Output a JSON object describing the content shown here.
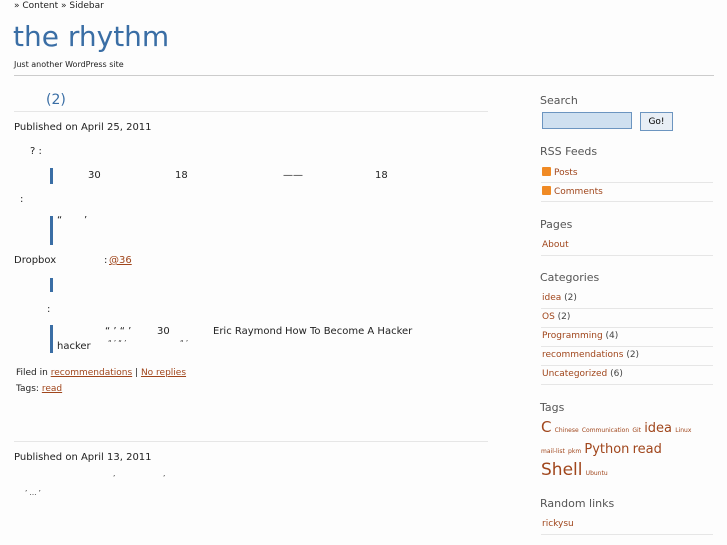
{
  "breadcrumb": "» Content » Sidebar",
  "site": {
    "title": "the rhythm",
    "tagline": "Just another WordPress site"
  },
  "posts": [
    {
      "title": "(2)",
      "published": "Published on April 25, 2011",
      "fragments": {
        "q1": "? :",
        "n30": "30",
        "n18a": "18",
        "dash": "——",
        "n18b": "18",
        "colon1": ":",
        "quote1": "“",
        "quote2": "’",
        "dropbox": "Dropbox",
        "colon2": ":",
        "link36": "@36",
        "colon3": ":",
        "quotes3": "“ ’ “ ’",
        "n30b": "30",
        "author": "Eric Raymond",
        "essay": "How To Become A Hacker",
        "hacker": "hacker",
        "quotes4": "“ ’ “ ’",
        "quotes5": "“ ’"
      },
      "filed_label": "Filed in",
      "category": "recommendations",
      "sep": "|",
      "replies": "No replies",
      "tags_label": "Tags:",
      "tag": "read"
    },
    {
      "published": "Published on April 13, 2011",
      "fragments": {
        "q1": "’",
        "q2": "’",
        "q3": "’ … ’"
      }
    }
  ],
  "sidebar": {
    "search": {
      "heading": "Search",
      "value": "",
      "button": "Go!"
    },
    "rss": {
      "heading": "RSS Feeds",
      "items": [
        "Posts",
        "Comments"
      ],
      "icon": "rss-icon"
    },
    "pages": {
      "heading": "Pages",
      "items": [
        "About"
      ]
    },
    "categories": {
      "heading": "Categories",
      "items": [
        {
          "name": "idea",
          "count": "(2)"
        },
        {
          "name": "OS",
          "count": "(2)"
        },
        {
          "name": "Programming",
          "count": "(4)"
        },
        {
          "name": "recommendations",
          "count": "(2)"
        },
        {
          "name": "Uncategorized",
          "count": "(6)"
        }
      ]
    },
    "tags": {
      "heading": "Tags",
      "items": [
        "C",
        "Chinese",
        "Communication",
        "Git",
        "idea",
        "Linux",
        "mail-list",
        "pkm",
        "Python",
        "read",
        "Shell",
        "Ubuntu"
      ]
    },
    "links": {
      "heading": "Random links",
      "items": [
        "rickysu"
      ]
    }
  },
  "colors": {
    "title": "#3a6ea5",
    "link": "#a0461c",
    "search_bg": "#cfe0f0"
  }
}
